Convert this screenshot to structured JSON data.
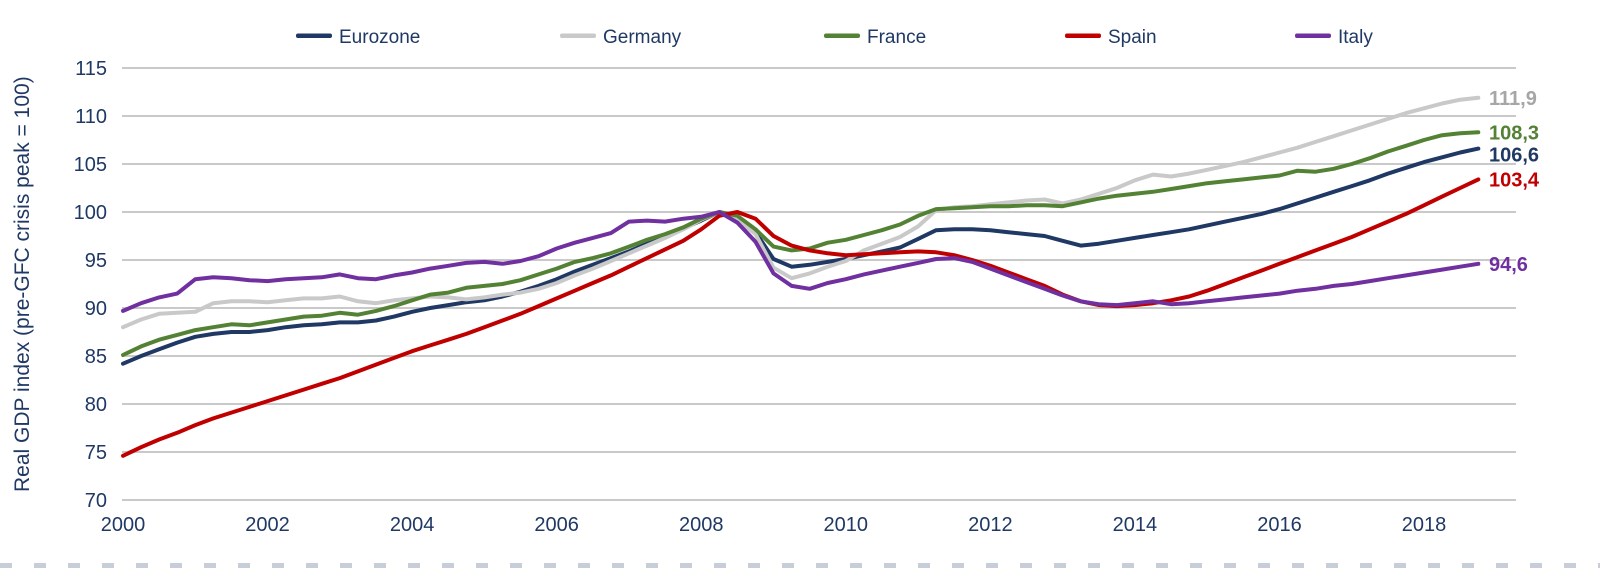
{
  "chart_data": {
    "type": "line",
    "title": "",
    "xlabel": "",
    "ylabel": "Real GDP index (pre-GFC crisis peak = 100)",
    "x_start_year": 2000,
    "x_step_years": 0.25,
    "x_tick_values": [
      2000,
      2002,
      2004,
      2006,
      2008,
      2010,
      2012,
      2014,
      2016,
      2018
    ],
    "x_tick_labels": [
      "2000",
      "2002",
      "2004",
      "2006",
      "2008",
      "2010",
      "2012",
      "2014",
      "2016",
      "2018"
    ],
    "y_ticks": [
      70,
      75,
      80,
      85,
      90,
      95,
      100,
      105,
      110,
      115
    ],
    "ylim": [
      70,
      115
    ],
    "grid": "horizontal",
    "legend_position": "top",
    "decimal_separator": ",",
    "series": [
      {
        "name": "Eurozone",
        "color": "#1f3864",
        "label_color": "#1f3864",
        "end_label": "106,6",
        "values": [
          84.2,
          85.0,
          85.7,
          86.4,
          87.0,
          87.3,
          87.5,
          87.5,
          87.7,
          88.0,
          88.2,
          88.3,
          88.5,
          88.5,
          88.7,
          89.1,
          89.6,
          90.0,
          90.3,
          90.6,
          90.8,
          91.2,
          91.7,
          92.3,
          93.0,
          93.8,
          94.5,
          95.2,
          95.9,
          96.7,
          97.5,
          98.3,
          99.1,
          100.0,
          99.4,
          97.9,
          95.1,
          94.3,
          94.5,
          94.8,
          95.1,
          95.5,
          95.9,
          96.3,
          97.2,
          98.1,
          98.2,
          98.2,
          98.1,
          97.9,
          97.7,
          97.5,
          97.0,
          96.5,
          96.7,
          97.0,
          97.3,
          97.6,
          97.9,
          98.2,
          98.6,
          99.0,
          99.4,
          99.8,
          100.3,
          100.9,
          101.5,
          102.1,
          102.7,
          103.3,
          104.0,
          104.6,
          105.2,
          105.7,
          106.2,
          106.6
        ]
      },
      {
        "name": "Germany",
        "color": "#c9c9c9",
        "label_color": "#a6a6a6",
        "end_label": "111,9",
        "values": [
          88.0,
          88.8,
          89.4,
          89.5,
          89.6,
          90.5,
          90.7,
          90.7,
          90.6,
          90.8,
          91.0,
          91.0,
          91.2,
          90.7,
          90.5,
          90.8,
          91.0,
          91.2,
          91.1,
          90.9,
          91.1,
          91.4,
          91.6,
          92.0,
          92.6,
          93.4,
          94.1,
          94.9,
          95.7,
          96.5,
          97.3,
          98.2,
          99.2,
          100.0,
          99.2,
          97.7,
          94.2,
          93.1,
          93.6,
          94.3,
          94.9,
          96.0,
          96.7,
          97.4,
          98.5,
          100.2,
          100.5,
          100.6,
          100.8,
          101.0,
          101.2,
          101.3,
          100.9,
          101.3,
          101.9,
          102.5,
          103.3,
          103.9,
          103.7,
          104.0,
          104.4,
          104.8,
          105.2,
          105.7,
          106.2,
          106.7,
          107.3,
          107.9,
          108.5,
          109.1,
          109.7,
          110.3,
          110.8,
          111.3,
          111.7,
          111.9
        ]
      },
      {
        "name": "France",
        "color": "#548235",
        "label_color": "#548235",
        "end_label": "108,3",
        "values": [
          85.1,
          86.0,
          86.7,
          87.2,
          87.7,
          88.0,
          88.3,
          88.2,
          88.5,
          88.8,
          89.1,
          89.2,
          89.5,
          89.3,
          89.7,
          90.2,
          90.8,
          91.4,
          91.6,
          92.1,
          92.3,
          92.5,
          92.9,
          93.5,
          94.1,
          94.8,
          95.2,
          95.7,
          96.4,
          97.1,
          97.7,
          98.4,
          99.3,
          100.0,
          99.6,
          98.2,
          96.4,
          96.0,
          96.2,
          96.8,
          97.1,
          97.6,
          98.1,
          98.7,
          99.6,
          100.3,
          100.4,
          100.5,
          100.6,
          100.6,
          100.7,
          100.7,
          100.6,
          101.0,
          101.4,
          101.7,
          101.9,
          102.1,
          102.4,
          102.7,
          103.0,
          103.2,
          103.4,
          103.6,
          103.8,
          104.3,
          104.2,
          104.5,
          105.0,
          105.6,
          106.3,
          106.9,
          107.5,
          108.0,
          108.2,
          108.3
        ]
      },
      {
        "name": "Spain",
        "color": "#c00000",
        "label_color": "#c00000",
        "end_label": "103,4",
        "values": [
          74.6,
          75.5,
          76.3,
          77.0,
          77.8,
          78.5,
          79.1,
          79.7,
          80.3,
          80.9,
          81.5,
          82.1,
          82.7,
          83.4,
          84.1,
          84.8,
          85.5,
          86.1,
          86.7,
          87.3,
          88.0,
          88.7,
          89.4,
          90.2,
          91.0,
          91.8,
          92.6,
          93.4,
          94.3,
          95.2,
          96.1,
          97.0,
          98.2,
          99.6,
          100.0,
          99.3,
          97.5,
          96.5,
          96.0,
          95.7,
          95.5,
          95.6,
          95.7,
          95.8,
          95.9,
          95.8,
          95.5,
          95.0,
          94.4,
          93.7,
          93.0,
          92.3,
          91.4,
          90.7,
          90.3,
          90.2,
          90.3,
          90.5,
          90.8,
          91.2,
          91.8,
          92.5,
          93.2,
          93.9,
          94.6,
          95.3,
          96.0,
          96.7,
          97.4,
          98.2,
          99.0,
          99.8,
          100.7,
          101.6,
          102.5,
          103.4
        ]
      },
      {
        "name": "Italy",
        "color": "#7030a0",
        "label_color": "#7030a0",
        "end_label": "94,6",
        "values": [
          89.7,
          90.5,
          91.1,
          91.5,
          93.0,
          93.2,
          93.1,
          92.9,
          92.8,
          93.0,
          93.1,
          93.2,
          93.5,
          93.1,
          93.0,
          93.4,
          93.7,
          94.1,
          94.4,
          94.7,
          94.8,
          94.6,
          94.9,
          95.4,
          96.2,
          96.8,
          97.3,
          97.8,
          99.0,
          99.1,
          99.0,
          99.3,
          99.5,
          100.0,
          98.9,
          96.9,
          93.6,
          92.3,
          92.0,
          92.6,
          93.0,
          93.5,
          93.9,
          94.3,
          94.7,
          95.1,
          95.2,
          94.8,
          94.1,
          93.4,
          92.7,
          92.0,
          91.3,
          90.7,
          90.4,
          90.3,
          90.5,
          90.7,
          90.4,
          90.5,
          90.7,
          90.9,
          91.1,
          91.3,
          91.5,
          91.8,
          92.0,
          92.3,
          92.5,
          92.8,
          93.1,
          93.4,
          93.7,
          94.0,
          94.3,
          94.6
        ]
      }
    ]
  }
}
